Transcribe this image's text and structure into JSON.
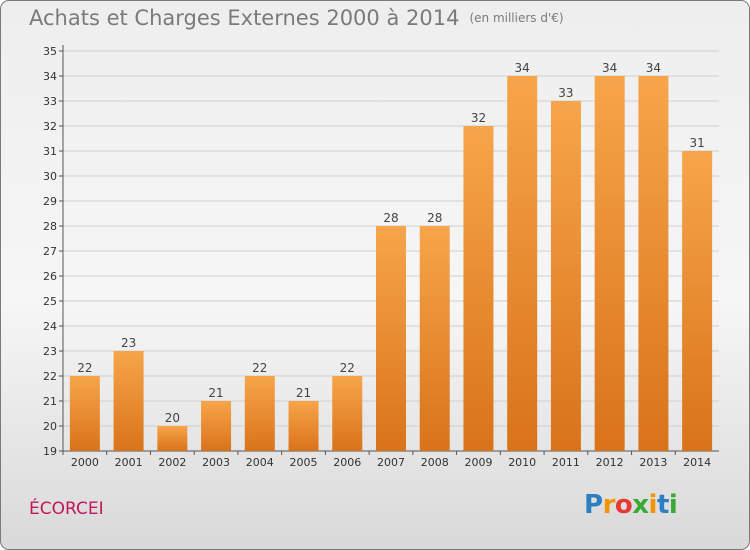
{
  "header": {
    "title": "Achats et Charges Externes 2000 à 2014",
    "subtitle": "(en milliers d'€)"
  },
  "footer": {
    "commune": "ÉCORCEI",
    "logo_letters": [
      "P",
      "r",
      "o",
      "x",
      "i",
      "t",
      "i"
    ],
    "logo_colors": [
      "#2e7fc1",
      "#f29400",
      "#e53935",
      "#3aa935",
      "#f29400",
      "#2e7fc1",
      "#3aa935"
    ]
  },
  "colors": {
    "bar_light": "#f7a54a",
    "bar_dark": "#d9731a",
    "grid": "#cfcfcf"
  },
  "chart_data": {
    "type": "bar",
    "title": "Achats et Charges Externes 2000 à 2014",
    "subtitle": "(en milliers d'€)",
    "categories": [
      "2000",
      "2001",
      "2002",
      "2003",
      "2004",
      "2005",
      "2006",
      "2007",
      "2008",
      "2009",
      "2010",
      "2011",
      "2012",
      "2013",
      "2014"
    ],
    "values": [
      22,
      23,
      20,
      21,
      22,
      21,
      22,
      28,
      28,
      32,
      34,
      33,
      34,
      34,
      31
    ],
    "ylim": [
      19,
      35
    ],
    "yticks": [
      19,
      20,
      21,
      22,
      23,
      24,
      25,
      26,
      27,
      28,
      29,
      30,
      31,
      32,
      33,
      34,
      35
    ],
    "grid": true,
    "data_labels": true
  }
}
